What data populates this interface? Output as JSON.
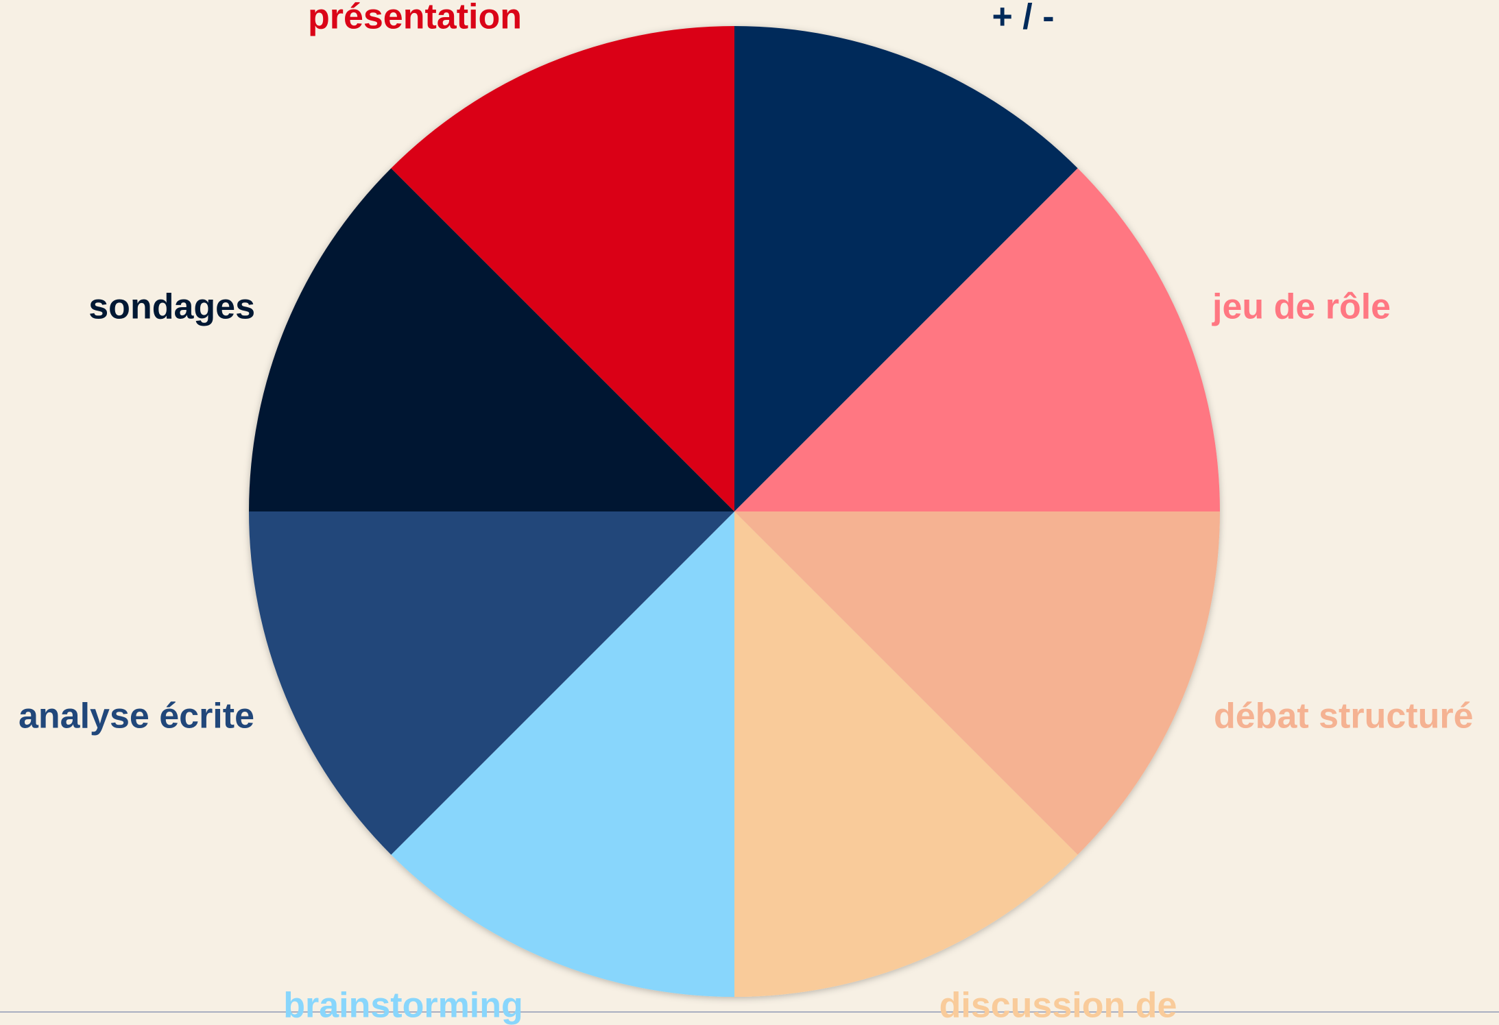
{
  "chart_data": {
    "type": "pie",
    "categories": [
      "+ / -",
      "jeu de rôle",
      "débat structuré",
      "discussion de",
      "brainstorming",
      "analyse écrite",
      "sondages",
      "présentation"
    ],
    "values": [
      12.5,
      12.5,
      12.5,
      12.5,
      12.5,
      12.5,
      12.5,
      12.5
    ],
    "colors": [
      "#002a5a",
      "#ff7782",
      "#f5b292",
      "#f9cb9a",
      "#88d6fc",
      "#21477a",
      "#011833",
      "#da0417"
    ]
  }
}
